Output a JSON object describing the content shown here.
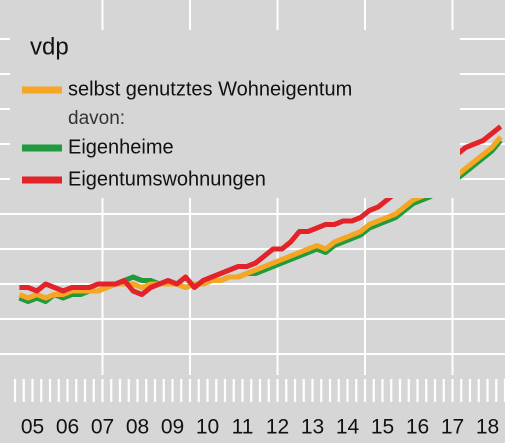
{
  "chart_data": {
    "type": "line",
    "source": "vdp",
    "subheading": "davon:",
    "x": [
      2005.125,
      2005.375,
      2005.625,
      2005.875,
      2006.125,
      2006.375,
      2006.625,
      2006.875,
      2007.125,
      2007.375,
      2007.625,
      2007.875,
      2008.125,
      2008.375,
      2008.625,
      2008.875,
      2009.125,
      2009.375,
      2009.625,
      2009.875,
      2010.125,
      2010.375,
      2010.625,
      2010.875,
      2011.125,
      2011.375,
      2011.625,
      2011.875,
      2012.125,
      2012.375,
      2012.625,
      2012.875,
      2013.125,
      2013.375,
      2013.625,
      2013.875,
      2014.125,
      2014.375,
      2014.625,
      2014.875,
      2015.125,
      2015.375,
      2015.625,
      2015.875,
      2016.125,
      2016.375,
      2016.625,
      2016.875,
      2017.125,
      2017.375,
      2017.625,
      2017.875,
      2018.125,
      2018.375,
      2018.625,
      2018.875
    ],
    "series": [
      {
        "name": "Eigenheime",
        "color": "#1f9b3e",
        "values": [
          96,
          95,
          96,
          95,
          97,
          96,
          97,
          97,
          98,
          98,
          99,
          100,
          101,
          102,
          101,
          101,
          100,
          100,
          100,
          99,
          100,
          100,
          101,
          101,
          102,
          102,
          103,
          103,
          104,
          105,
          106,
          107,
          108,
          109,
          110,
          109,
          111,
          112,
          113,
          114,
          116,
          117,
          118,
          119,
          121,
          123,
          124,
          125,
          127,
          129,
          130,
          132,
          134,
          136,
          138,
          141
        ]
      },
      {
        "name": "selbst genutztes Wohneigentum",
        "color": "#f6a623",
        "values": [
          97,
          96,
          97,
          96,
          97,
          97,
          98,
          98,
          98,
          98,
          99,
          100,
          100,
          100,
          99,
          100,
          100,
          100,
          100,
          99,
          100,
          100,
          101,
          101,
          102,
          102,
          103,
          104,
          105,
          106,
          107,
          108,
          109,
          110,
          111,
          110,
          112,
          113,
          114,
          115,
          117,
          118,
          119,
          120,
          122,
          124,
          125,
          126,
          128,
          130,
          131,
          133,
          135,
          137,
          139,
          142
        ]
      },
      {
        "name": "Eigentumswohnungen",
        "color": "#e3232a",
        "values": [
          99,
          99,
          98,
          100,
          99,
          98,
          99,
          99,
          99,
          100,
          100,
          100,
          101,
          98,
          97,
          99,
          100,
          101,
          100,
          102,
          99,
          101,
          102,
          103,
          104,
          105,
          105,
          106,
          108,
          110,
          110,
          112,
          115,
          115,
          116,
          117,
          117,
          118,
          118,
          119,
          121,
          122,
          124,
          126,
          126,
          128,
          129,
          131,
          133,
          135,
          137,
          139,
          140,
          141,
          143,
          145
        ]
      }
    ],
    "xlim": [
      2005,
      2019
    ],
    "ylim": [
      65,
      180
    ],
    "yticks": [
      80,
      90,
      100,
      110,
      120,
      130,
      140,
      150,
      160,
      170
    ],
    "xgrid": [
      2007.5,
      2010,
      2012.5,
      2015,
      2017.5
    ],
    "xticks": [
      {
        "value": 2005.5,
        "label": "05"
      },
      {
        "value": 2006.5,
        "label": "06"
      },
      {
        "value": 2007.5,
        "label": "07"
      },
      {
        "value": 2008.5,
        "label": "08"
      },
      {
        "value": 2009.5,
        "label": "09"
      },
      {
        "value": 2010.5,
        "label": "10"
      },
      {
        "value": 2011.5,
        "label": "11"
      },
      {
        "value": 2012.5,
        "label": "12"
      },
      {
        "value": 2013.5,
        "label": "13"
      },
      {
        "value": 2014.5,
        "label": "14"
      },
      {
        "value": 2015.5,
        "label": "15"
      },
      {
        "value": 2016.5,
        "label": "16"
      },
      {
        "value": 2017.5,
        "label": "17"
      },
      {
        "value": 2018.5,
        "label": "18"
      }
    ],
    "grid": true
  }
}
